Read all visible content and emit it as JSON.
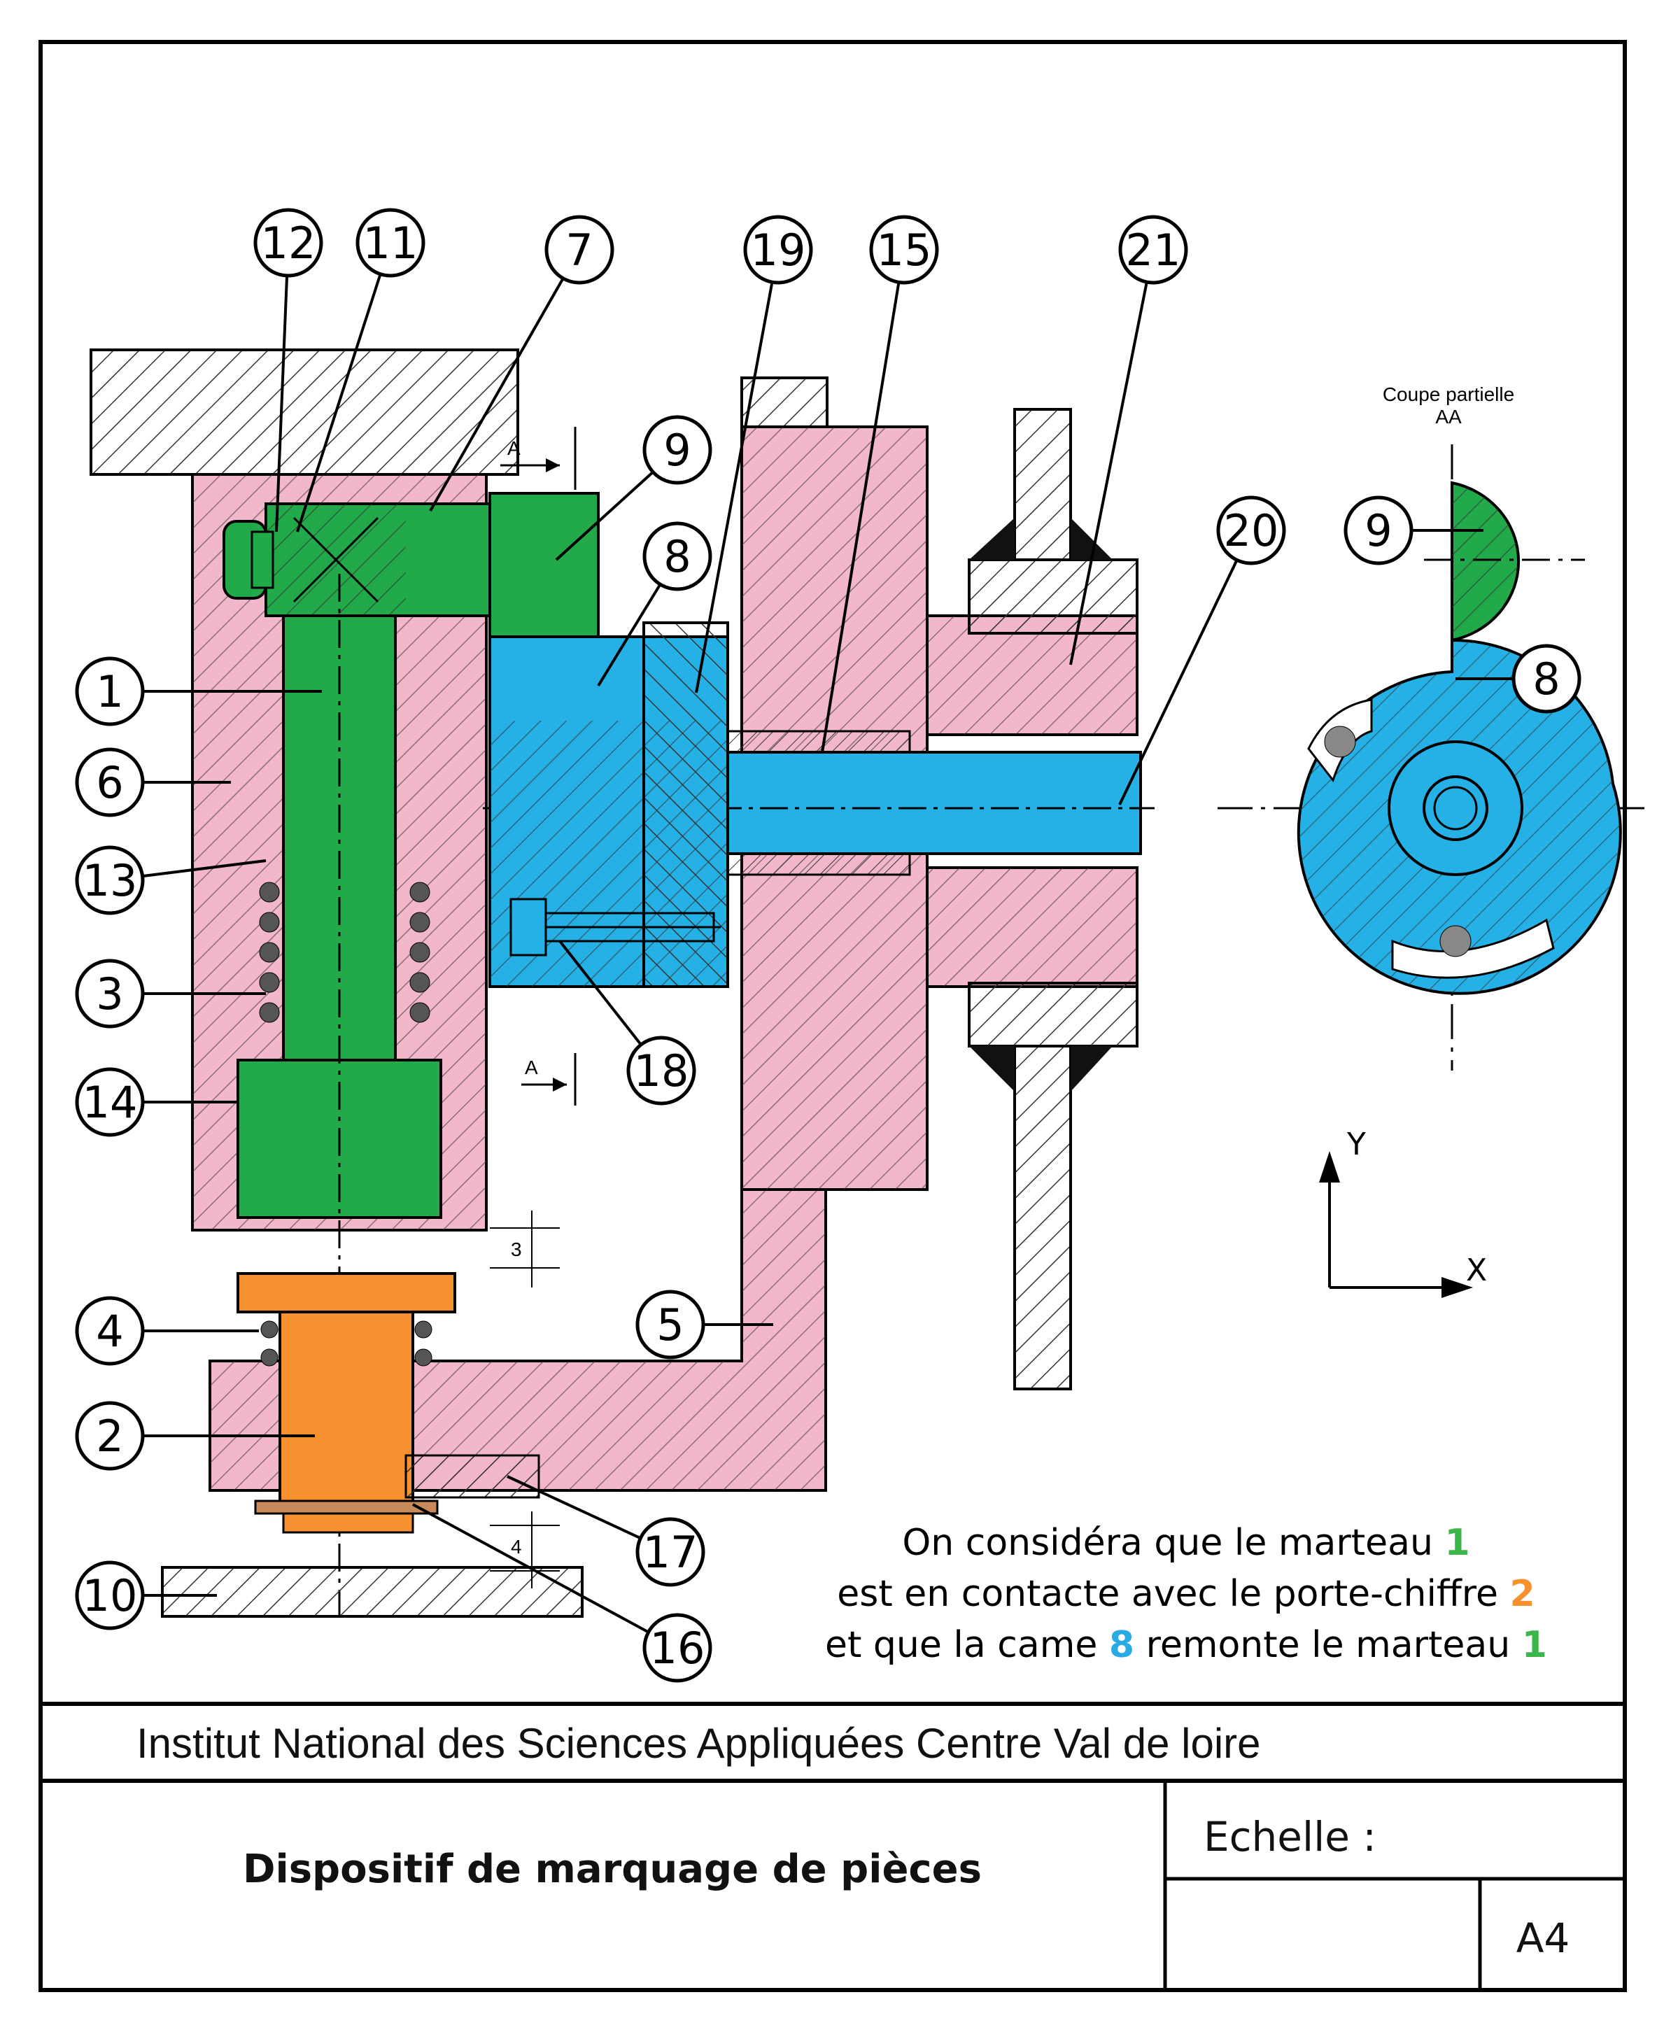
{
  "callouts": [
    "12",
    "11",
    "7",
    "19",
    "15",
    "21",
    "9",
    "8",
    "20",
    "1",
    "6",
    "13",
    "3",
    "14",
    "18",
    "4",
    "5",
    "2",
    "17",
    "10",
    "16"
  ],
  "section_view": {
    "title_line1": "Coupe partielle",
    "title_line2": "AA",
    "callout_9": "9",
    "callout_8": "8"
  },
  "section_marks": {
    "a_top": "A",
    "a_bottom": "A"
  },
  "dimensions": {
    "gap_3": "3",
    "gap_4": "4"
  },
  "axes": {
    "y_label": "Y",
    "x_label": "X"
  },
  "note": {
    "line1_text": "On considéra que le marteau ",
    "line1_num": "1",
    "line2_text": "est en contacte avec le porte-chiffre ",
    "line2_num": "2",
    "line3_text_a": "et que la came ",
    "line3_num_a": "8",
    "line3_text_b": " remonte le marteau ",
    "line3_num_b": "1"
  },
  "title_block": {
    "institution": "Institut National des Sciences Appliquées Centre Val de loire",
    "title": "Dispositif de marquage de pièces",
    "scale_label": "Echelle :",
    "format": "A4"
  },
  "colors": {
    "green": "#22a94a",
    "pink": "#f2b7c9",
    "blue": "#26b1e6",
    "orange": "#f7912f",
    "note_green": "#3cb54a",
    "note_orange": "#f7912f",
    "note_blue": "#2aaae2"
  }
}
